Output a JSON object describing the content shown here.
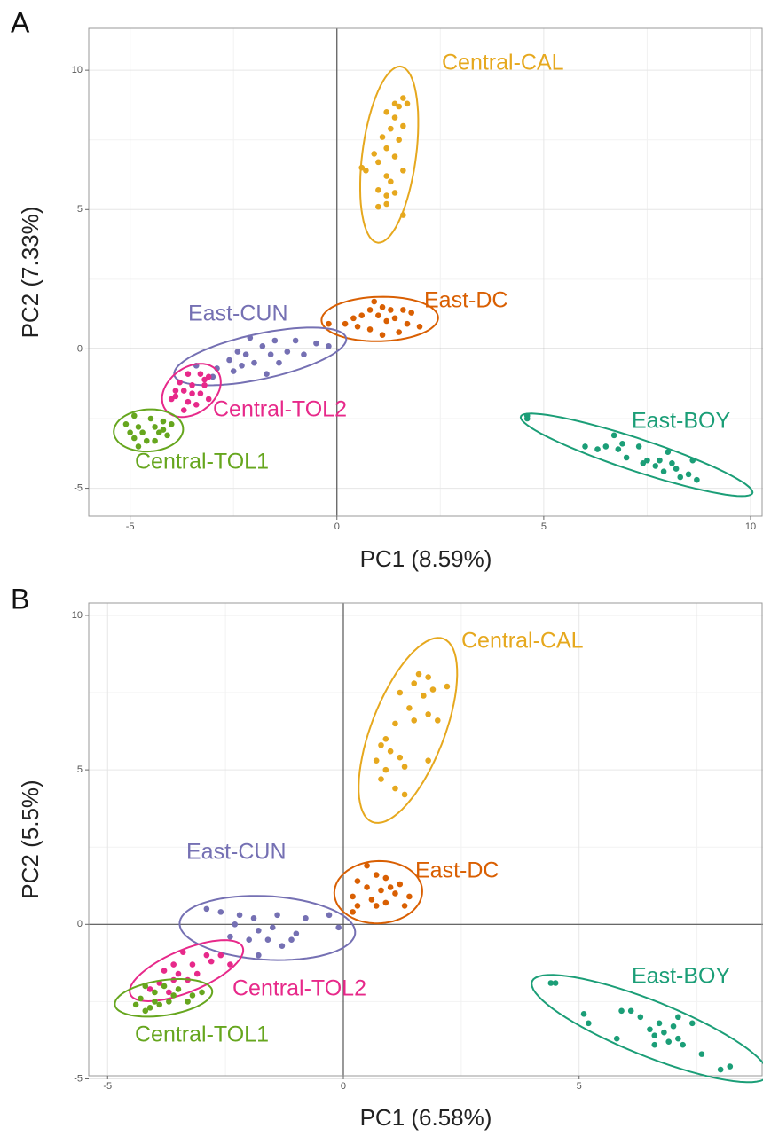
{
  "chart_data": [
    {
      "type": "scatter",
      "panel": "A",
      "xlabel": "PC1 (8.59%)",
      "ylabel": "PC2 (7.33%)",
      "xlim": [
        -6.0,
        10.3
      ],
      "ylim": [
        -6.0,
        11.5
      ],
      "xticks": [
        -5,
        0,
        5,
        10
      ],
      "yticks": [
        -5,
        0,
        5,
        10
      ],
      "grid": true,
      "series": [
        {
          "name": "Central-CAL",
          "color": "#E6A81E",
          "x": [
            1.6,
            1.4,
            1.7,
            1.2,
            1.5,
            1.4,
            1.6,
            1.3,
            1.1,
            1.5,
            1.2,
            0.9,
            1.4,
            1.0,
            0.6,
            0.7,
            1.2,
            1.6,
            1.3,
            1.0,
            1.2,
            1.4,
            1.0,
            1.2,
            1.6
          ],
          "y": [
            9.0,
            8.8,
            8.8,
            8.5,
            8.7,
            8.3,
            8.0,
            7.9,
            7.6,
            7.5,
            7.2,
            7.0,
            6.9,
            6.7,
            6.5,
            6.4,
            6.2,
            6.4,
            6.0,
            5.7,
            5.5,
            5.6,
            5.1,
            5.2,
            4.8
          ]
        },
        {
          "name": "East-DC",
          "color": "#D95F02",
          "x": [
            0.9,
            1.1,
            0.8,
            1.3,
            1.6,
            1.8,
            0.6,
            1.0,
            1.4,
            0.2,
            0.5,
            0.8,
            1.2,
            1.7,
            2.0,
            1.1,
            0.4,
            -0.2,
            1.5
          ],
          "y": [
            1.7,
            1.5,
            1.4,
            1.4,
            1.4,
            1.3,
            1.2,
            1.2,
            1.1,
            0.9,
            0.8,
            0.7,
            1.0,
            0.9,
            0.8,
            0.5,
            1.1,
            0.9,
            0.6
          ]
        },
        {
          "name": "East-CUN",
          "color": "#7570B3",
          "x": [
            -2.1,
            -1.5,
            -1.0,
            -0.5,
            -0.2,
            -1.8,
            -2.4,
            -2.2,
            -1.6,
            -1.2,
            -0.8,
            -2.6,
            -2.0,
            -2.3,
            -1.4,
            -3.4,
            -3.0,
            -2.9,
            -1.7,
            -2.5
          ],
          "y": [
            0.4,
            0.3,
            0.3,
            0.2,
            0.1,
            0.1,
            -0.1,
            -0.2,
            -0.2,
            -0.1,
            -0.2,
            -0.4,
            -0.5,
            -0.6,
            -0.5,
            -0.6,
            -1.0,
            -0.7,
            -0.9,
            -0.8
          ]
        },
        {
          "name": "Central-TOL2",
          "color": "#E7298A",
          "x": [
            -3.6,
            -3.3,
            -3.1,
            -3.8,
            -3.5,
            -3.2,
            -3.9,
            -3.7,
            -3.5,
            -3.3,
            -4.0,
            -3.6,
            -3.4,
            -3.7,
            -3.1,
            -3.9,
            -3.2
          ],
          "y": [
            -0.9,
            -0.9,
            -1.0,
            -1.2,
            -1.3,
            -1.3,
            -1.5,
            -1.5,
            -1.6,
            -1.6,
            -1.8,
            -1.9,
            -2.0,
            -2.2,
            -1.8,
            -1.7,
            -1.1
          ]
        },
        {
          "name": "Central-TOL1",
          "color": "#66A61E",
          "x": [
            -4.9,
            -4.5,
            -4.2,
            -5.1,
            -4.8,
            -4.4,
            -4.0,
            -5.0,
            -4.7,
            -4.3,
            -4.1,
            -4.9,
            -4.6,
            -4.4,
            -4.8,
            -4.2
          ],
          "y": [
            -2.4,
            -2.5,
            -2.6,
            -2.7,
            -2.8,
            -2.8,
            -2.7,
            -3.0,
            -3.0,
            -3.0,
            -3.1,
            -3.2,
            -3.3,
            -3.3,
            -3.5,
            -2.9
          ]
        },
        {
          "name": "East-BOY",
          "color": "#1B9E77",
          "x": [
            4.6,
            4.6,
            6.0,
            6.3,
            6.7,
            6.8,
            7.0,
            7.3,
            7.5,
            7.7,
            7.8,
            8.0,
            8.2,
            8.3,
            8.5,
            8.6,
            8.7,
            7.4,
            6.9,
            8.1,
            7.9,
            6.5
          ],
          "y": [
            -2.4,
            -2.5,
            -3.5,
            -3.6,
            -3.1,
            -3.6,
            -3.9,
            -3.5,
            -4.0,
            -4.2,
            -4.0,
            -3.7,
            -4.3,
            -4.6,
            -4.5,
            -4.0,
            -4.7,
            -4.1,
            -3.4,
            -4.1,
            -4.4,
            -3.5
          ]
        }
      ]
    },
    {
      "type": "scatter",
      "panel": "B",
      "xlabel": "PC1 (6.58%)",
      "ylabel": "PC2 (5.5%)",
      "xlim": [
        -5.4,
        8.9
      ],
      "ylim": [
        -4.9,
        10.4
      ],
      "xticks": [
        -5,
        0,
        5
      ],
      "yticks": [
        -5,
        0,
        5,
        10
      ],
      "grid": true,
      "series": [
        {
          "name": "Central-CAL",
          "color": "#E6A81E",
          "x": [
            1.6,
            1.8,
            1.5,
            1.9,
            2.2,
            1.2,
            1.7,
            1.4,
            1.8,
            2.0,
            1.1,
            1.5,
            0.8,
            1.0,
            0.7,
            1.2,
            0.9,
            1.3,
            1.8,
            0.8,
            1.1,
            1.3,
            0.9
          ],
          "y": [
            8.1,
            8.0,
            7.8,
            7.6,
            7.7,
            7.5,
            7.4,
            7.0,
            6.8,
            6.6,
            6.5,
            6.6,
            5.8,
            5.6,
            5.3,
            5.4,
            5.0,
            5.1,
            5.3,
            4.7,
            4.4,
            4.2,
            6.0
          ]
        },
        {
          "name": "East-DC",
          "color": "#D95F02",
          "x": [
            0.5,
            0.7,
            0.3,
            0.9,
            1.2,
            0.5,
            0.8,
            1.1,
            1.4,
            0.2,
            0.6,
            0.9,
            0.3,
            0.7,
            1.3,
            0.2,
            1.0
          ],
          "y": [
            1.9,
            1.6,
            1.4,
            1.5,
            1.3,
            1.2,
            1.1,
            1.0,
            0.9,
            0.9,
            0.8,
            0.7,
            0.6,
            0.6,
            0.6,
            0.4,
            1.2
          ]
        },
        {
          "name": "East-CUN",
          "color": "#7570B3",
          "x": [
            -2.9,
            -2.6,
            -2.2,
            -1.9,
            -1.4,
            -0.3,
            -0.1,
            -2.3,
            -1.8,
            -1.5,
            -1.0,
            -0.8,
            -2.0,
            -1.6,
            -1.3,
            -1.8,
            -2.4,
            -1.1
          ],
          "y": [
            0.5,
            0.4,
            0.3,
            0.2,
            0.3,
            0.3,
            -0.1,
            0.0,
            -0.2,
            -0.1,
            -0.3,
            0.2,
            -0.5,
            -0.5,
            -0.7,
            -1.0,
            -0.4,
            -0.5
          ]
        },
        {
          "name": "Central-TOL2",
          "color": "#E7298A",
          "x": [
            -3.4,
            -2.9,
            -2.6,
            -3.6,
            -3.2,
            -2.8,
            -3.8,
            -3.5,
            -3.1,
            -3.9,
            -3.6,
            -3.3,
            -4.1,
            -3.7,
            -2.4
          ],
          "y": [
            -0.9,
            -1.0,
            -1.0,
            -1.3,
            -1.3,
            -1.2,
            -1.5,
            -1.6,
            -1.6,
            -1.9,
            -1.8,
            -1.8,
            -2.1,
            -2.2,
            -1.3
          ]
        },
        {
          "name": "Central-TOL1",
          "color": "#66A61E",
          "x": [
            -4.2,
            -3.8,
            -3.5,
            -4.0,
            -3.6,
            -3.2,
            -4.3,
            -4.0,
            -3.7,
            -3.3,
            -4.4,
            -4.1,
            -3.9,
            -4.2,
            -3.0
          ],
          "y": [
            -2.0,
            -2.0,
            -2.1,
            -2.2,
            -2.3,
            -2.3,
            -2.4,
            -2.5,
            -2.5,
            -2.5,
            -2.6,
            -2.7,
            -2.6,
            -2.8,
            -2.2
          ]
        },
        {
          "name": "East-BOY",
          "color": "#1B9E77",
          "x": [
            4.4,
            4.5,
            5.1,
            5.2,
            5.9,
            6.1,
            6.3,
            6.5,
            6.6,
            6.7,
            6.8,
            6.9,
            7.0,
            7.1,
            7.2,
            7.4,
            7.6,
            8.0,
            8.2,
            5.8,
            6.6,
            7.1
          ],
          "y": [
            -1.9,
            -1.9,
            -2.9,
            -3.2,
            -2.8,
            -2.8,
            -3.0,
            -3.4,
            -3.6,
            -3.2,
            -3.5,
            -3.8,
            -3.3,
            -3.7,
            -3.9,
            -3.2,
            -4.2,
            -4.7,
            -4.6,
            -3.7,
            -3.9,
            -3.0
          ]
        }
      ]
    }
  ]
}
